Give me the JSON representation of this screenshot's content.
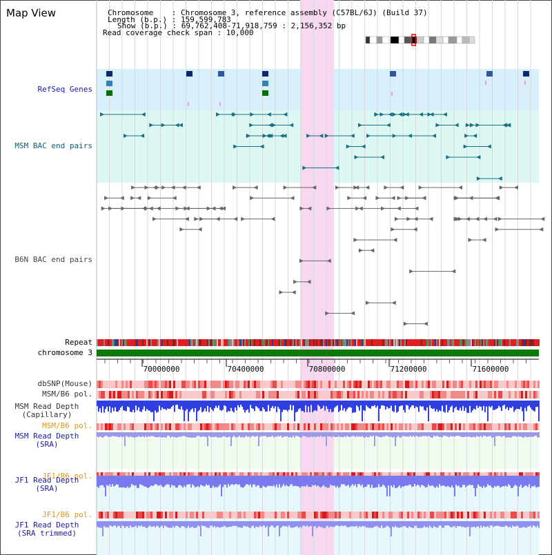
{
  "title": "Map View",
  "info": {
    "line1": "Chromosome    : Chromosome 3, reference assembly (C57BL/6J) (Build 37)",
    "line2": "Length (b.p.) : 159,599,783",
    "line3": "Show (b.p.) : 69,762,408-71,918,759 : 2,156,352 bp",
    "line4": "Read coverage check span : 10,000"
  },
  "tracks": {
    "refseq": "RefSeq Genes",
    "msm_bac": "MSM BAC end pairs",
    "b6n_bac": "B6N BAC end pairs",
    "repeat": "Repeat",
    "chromosome": "chromosome 3",
    "dbsnp": "dbSNP(Mouse)",
    "msm_b6_pol1": "MSM/B6 pol.",
    "msm_depth_cap": "MSM Read Depth\n(Capillary)",
    "msm_b6_pol2": "MSM/B6 pol.",
    "msm_depth_sra": "MSM Read Depth\n(SRA)",
    "jf1_b6_pol1": "JF1/B6 pol.",
    "jf1_depth_sra": "JF1 Read Depth\n(SRA)",
    "jf1_b6_pol2": "JF1/B6 pol.",
    "jf1_depth_trim": "JF1 Read Depth\n(SRA trimmed)"
  },
  "axis": {
    "ticks": [
      "70000000",
      "70400000",
      "70800000",
      "71200000",
      "71600000"
    ]
  },
  "colors": {
    "label_blue": "#1a1aa6",
    "label_teal": "#0b5f6e",
    "label_gray": "#333333",
    "label_orange": "#e0960a",
    "highlight": "#f7d8f0",
    "refseq_bg": "#d8f0fb",
    "msm_bg": "#ddf7f5",
    "chromosome": "#0a7a0a"
  }
}
